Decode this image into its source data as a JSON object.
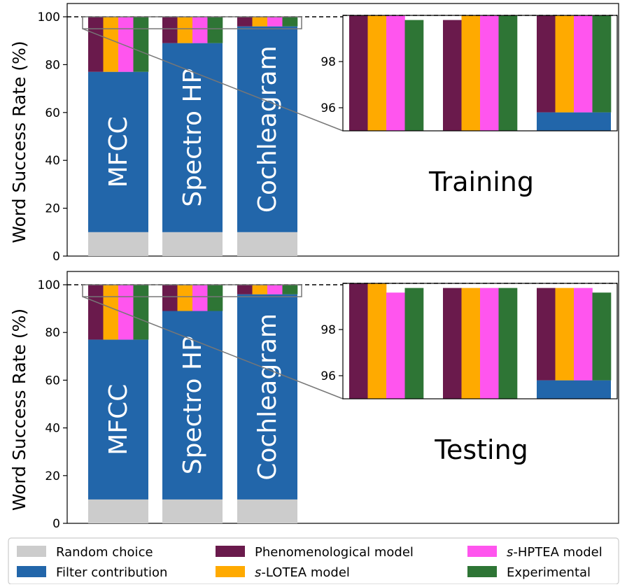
{
  "chart_data": [
    {
      "type": "bar",
      "title": "",
      "panel_label": "Training",
      "ylabel": "Word Success Rate (%)",
      "ylim": [
        0,
        100
      ],
      "yticks": [
        0,
        20,
        40,
        60,
        80,
        100
      ],
      "reference_line": 100,
      "categories": [
        "MFCC",
        "Spectro HP",
        "Cochleagram"
      ],
      "random_choice": [
        10,
        10,
        10
      ],
      "filter_contribution": [
        77,
        89,
        96
      ],
      "series": [
        {
          "name": "Phenomenological model",
          "values": [
            100,
            100,
            100
          ]
        },
        {
          "name": "s-LOTEA model",
          "values": [
            100,
            100,
            100
          ]
        },
        {
          "name": "s-HPTEA model",
          "values": [
            100,
            100,
            100
          ]
        },
        {
          "name": "Experimental",
          "values": [
            100,
            100,
            100
          ]
        }
      ],
      "inset": {
        "ylim": [
          95,
          100
        ],
        "yticks": [
          96,
          98
        ],
        "zoom_region": [
          95,
          100
        ],
        "filter_contribution": [
          77,
          89,
          95.8
        ],
        "series": [
          {
            "name": "Phenomenological model",
            "values": [
              100,
              99.8,
              100
            ]
          },
          {
            "name": "s-LOTEA model",
            "values": [
              100,
              100,
              100
            ]
          },
          {
            "name": "s-HPTEA model",
            "values": [
              100,
              100,
              100
            ]
          },
          {
            "name": "Experimental",
            "values": [
              99.8,
              100,
              100
            ]
          }
        ]
      }
    },
    {
      "type": "bar",
      "title": "",
      "panel_label": "Testing",
      "ylabel": "Word Success Rate (%)",
      "ylim": [
        0,
        100
      ],
      "yticks": [
        0,
        20,
        40,
        60,
        80,
        100
      ],
      "reference_line": 100,
      "categories": [
        "MFCC",
        "Spectro HP",
        "Cochleagram"
      ],
      "random_choice": [
        10,
        10,
        10
      ],
      "filter_contribution": [
        77,
        89,
        96
      ],
      "series": [
        {
          "name": "Phenomenological model",
          "values": [
            100,
            100,
            100
          ]
        },
        {
          "name": "s-LOTEA model",
          "values": [
            100,
            100,
            100
          ]
        },
        {
          "name": "s-HPTEA model",
          "values": [
            100,
            100,
            100
          ]
        },
        {
          "name": "Experimental",
          "values": [
            100,
            100,
            100
          ]
        }
      ],
      "inset": {
        "ylim": [
          95,
          100
        ],
        "yticks": [
          96,
          98
        ],
        "zoom_region": [
          95,
          100
        ],
        "filter_contribution": [
          77,
          89,
          95.8
        ],
        "series": [
          {
            "name": "Phenomenological model",
            "values": [
              100,
              99.8,
              99.8
            ]
          },
          {
            "name": "s-LOTEA model",
            "values": [
              100,
              99.8,
              99.8
            ]
          },
          {
            "name": "s-HPTEA model",
            "values": [
              99.6,
              99.8,
              99.8
            ]
          },
          {
            "name": "Experimental",
            "values": [
              99.8,
              99.8,
              99.6
            ]
          }
        ]
      }
    }
  ],
  "legend": {
    "position": "bottom",
    "items": [
      {
        "prefix": "",
        "label": "Random choice",
        "color": "#cccccc"
      },
      {
        "prefix": "",
        "label": "Filter contribution",
        "color": "#2266aa"
      },
      {
        "prefix": "",
        "label": "Phenomenological model",
        "color": "#6a1a4c"
      },
      {
        "prefix": "s",
        "label": "-LOTEA model",
        "color": "#ffaa00"
      },
      {
        "prefix": "s",
        "label": "-HPTEA model",
        "color": "#ff55ee"
      },
      {
        "prefix": "",
        "label": "Experimental",
        "color": "#2e7535"
      }
    ]
  },
  "colors": {
    "random_choice": "#cccccc",
    "filter_contribution": "#2266aa",
    "phenomenological": "#6a1a4c",
    "lotea": "#ffaa00",
    "hptea": "#ff55ee",
    "experimental": "#2e7535"
  }
}
